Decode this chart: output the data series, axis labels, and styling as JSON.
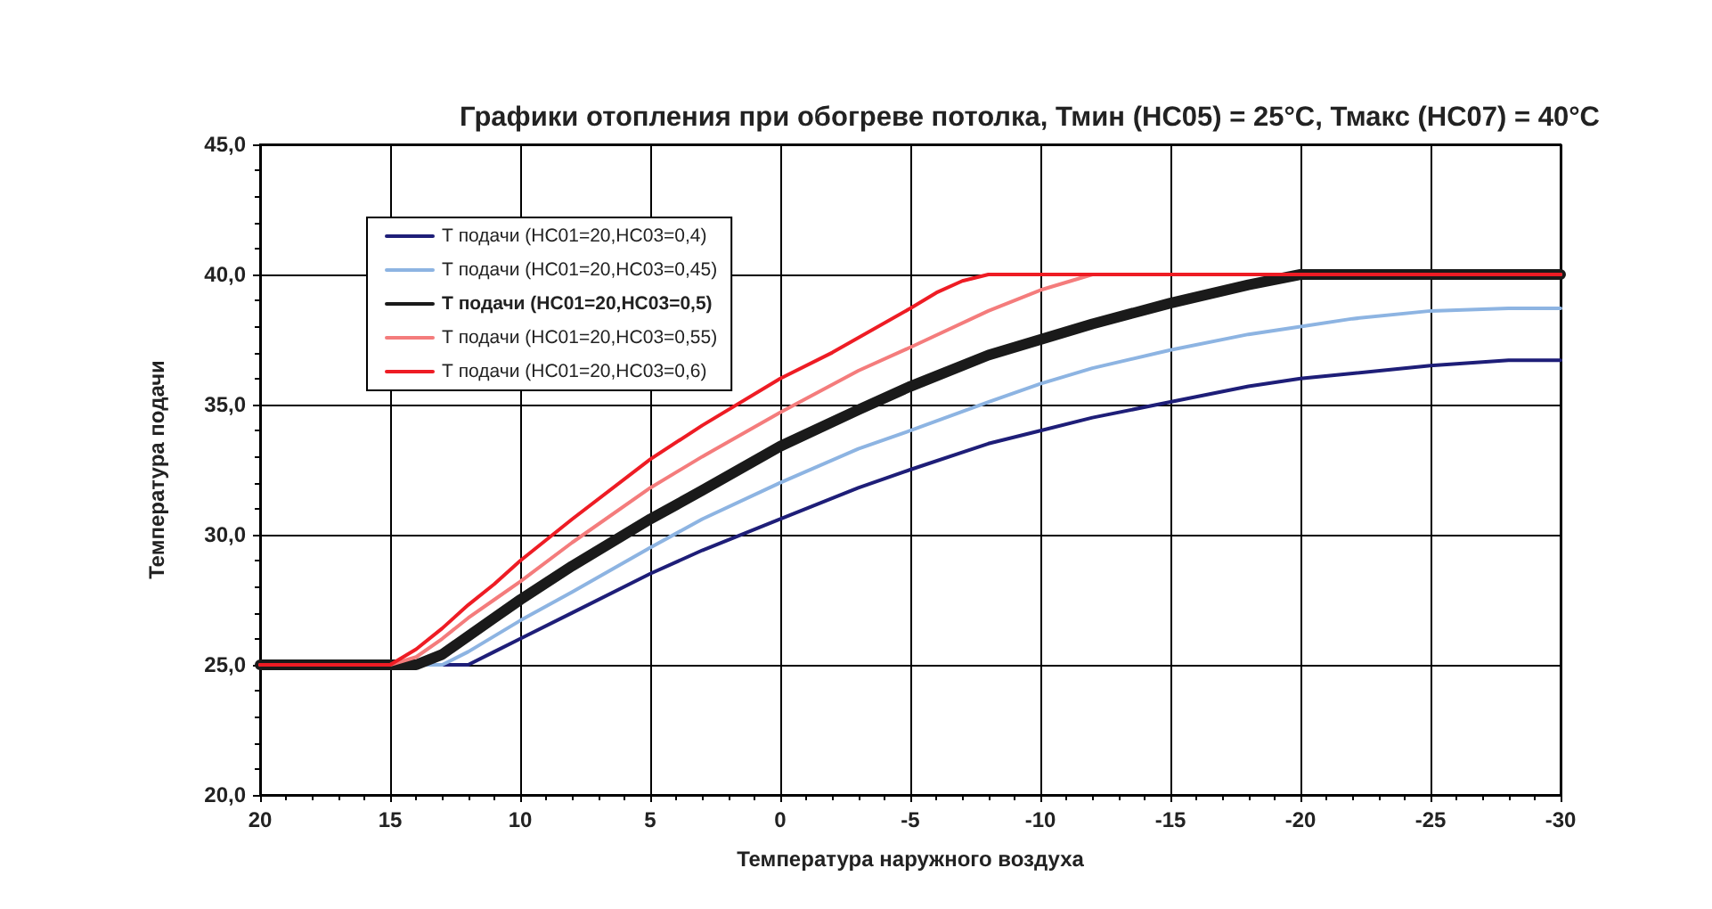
{
  "chart_data": {
    "type": "line",
    "title": "Графики отопления при обогреве потолка, Тмин (HC05) = 25°C, Тмакс (HC07) = 40°C",
    "xlabel": "Температура наружного воздуха",
    "ylabel": "Температура подачи",
    "xlim": [
      20,
      -30
    ],
    "xticks": [
      20,
      15,
      10,
      5,
      0,
      -5,
      -10,
      -15,
      -20,
      -25,
      -30
    ],
    "ylim": [
      20,
      45
    ],
    "yticks": [
      {
        "value": 20,
        "label": "20,0"
      },
      {
        "value": 25,
        "label": "25,0"
      },
      {
        "value": 30,
        "label": "30,0"
      },
      {
        "value": 35,
        "label": "35,0"
      },
      {
        "value": 40,
        "label": "40,0"
      },
      {
        "value": 45,
        "label": "45,0"
      }
    ],
    "grid": true,
    "legend": "top left",
    "marker": "none",
    "series": [
      {
        "name": "Т подачи (HC01=20,HC03=0,4)",
        "color": "#1e1e78",
        "x": [
          20,
          12,
          11,
          10,
          8,
          5,
          3,
          0,
          -3,
          -5,
          -8,
          -10,
          -12,
          -15,
          -18,
          -20,
          -22,
          -25,
          -28,
          -30
        ],
        "values": [
          25,
          25,
          25.5,
          26.0,
          27.0,
          28.5,
          29.4,
          30.6,
          31.8,
          32.5,
          33.5,
          34.0,
          34.5,
          35.1,
          35.7,
          36.0,
          36.2,
          36.5,
          36.7,
          36.7
        ]
      },
      {
        "name": "Т подачи (HC01=20,HC03=0,45)",
        "color": "#8db4e2",
        "x": [
          20,
          13,
          12,
          11,
          10,
          8,
          5,
          3,
          0,
          -3,
          -5,
          -8,
          -10,
          -12,
          -15,
          -18,
          -20,
          -22,
          -25,
          -28,
          -30
        ],
        "values": [
          25,
          25,
          25.5,
          26.1,
          26.7,
          27.8,
          29.5,
          30.6,
          32.0,
          33.3,
          34.0,
          35.1,
          35.8,
          36.4,
          37.1,
          37.7,
          38.0,
          38.3,
          38.6,
          38.7,
          38.7
        ]
      },
      {
        "name": "Т подачи (HC01=20,HC03=0,5)",
        "color": "#1a1a1a",
        "x": [
          20,
          14,
          13,
          12,
          11,
          10,
          8,
          5,
          3,
          0,
          -3,
          -5,
          -8,
          -10,
          -12,
          -15,
          -18,
          -20,
          -30
        ],
        "values": [
          25,
          25,
          25.4,
          26.1,
          26.8,
          27.5,
          28.8,
          30.6,
          31.7,
          33.4,
          34.8,
          35.7,
          36.9,
          37.5,
          38.1,
          38.9,
          39.6,
          40,
          40
        ]
      },
      {
        "name": "Т подачи (HC01=20,HC03=0,55)",
        "color": "#f47c7c",
        "x": [
          20,
          15,
          14,
          13,
          12,
          11,
          10,
          8,
          5,
          3,
          0,
          -3,
          -5,
          -8,
          -10,
          -12,
          -30
        ],
        "values": [
          25,
          25,
          25.3,
          26.0,
          26.8,
          27.5,
          28.2,
          29.7,
          31.8,
          33.0,
          34.7,
          36.3,
          37.2,
          38.6,
          39.4,
          40,
          40
        ]
      },
      {
        "name": "Т подачи (HC01=20,HC03=0,6)",
        "color": "#ee1c24",
        "x": [
          20,
          15,
          14,
          13,
          12,
          11,
          10,
          8,
          5,
          3,
          0,
          -2,
          -5,
          -6,
          -7,
          -8,
          -30
        ],
        "values": [
          25,
          25,
          25.6,
          26.4,
          27.3,
          28.1,
          29.0,
          30.6,
          32.9,
          34.2,
          36.0,
          37.0,
          38.7,
          39.3,
          39.75,
          40,
          40
        ]
      }
    ]
  }
}
